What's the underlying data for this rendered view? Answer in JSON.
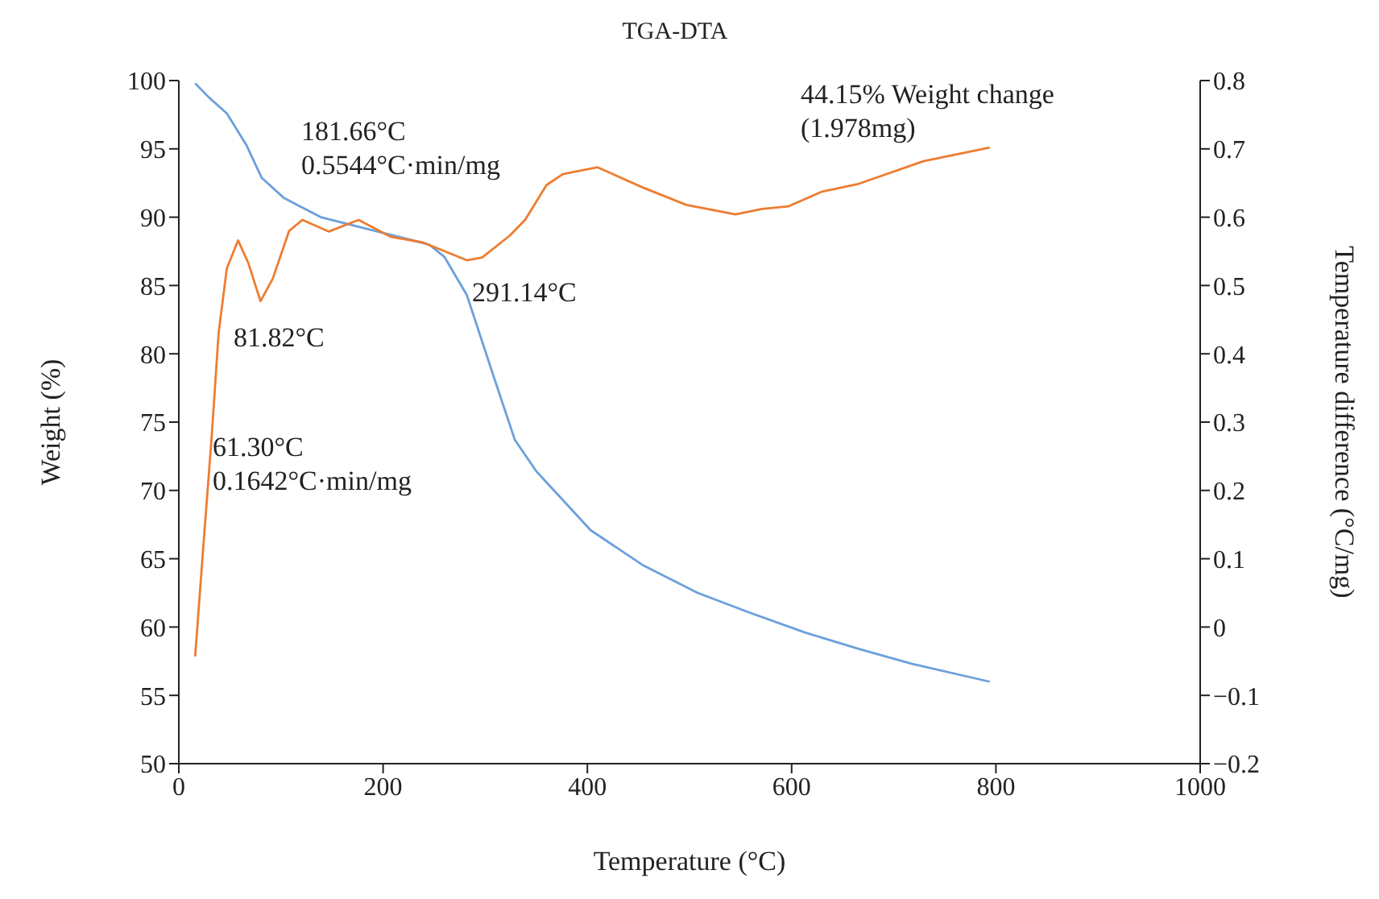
{
  "chart_data": {
    "type": "line",
    "title": "TGA-DTA",
    "xlabel": "Temperature (°C)",
    "ylabel": "Weight (%)",
    "y2label": "Temperature difference (°C/mg)",
    "xlim": [
      0,
      1000
    ],
    "xticks": [
      0,
      200,
      400,
      600,
      800,
      1000
    ],
    "ylim": [
      50,
      100
    ],
    "yticks": [
      50,
      55,
      60,
      65,
      70,
      75,
      80,
      85,
      90,
      95,
      100
    ],
    "y2lim": [
      -0.2,
      0.8
    ],
    "y2ticks": [
      {
        "value": -0.2,
        "label": "−0.2"
      },
      {
        "value": -0.1,
        "label": "−0.1"
      },
      0,
      0.1,
      0.2,
      0.3,
      0.4,
      0.5,
      0.6,
      0.7,
      0.8
    ],
    "grid": false,
    "legend": false,
    "series": [
      {
        "color": "#6ca0dc",
        "x": [
          16,
          29,
          47,
          66,
          81,
          103,
          139,
          192,
          245,
          260,
          282,
          308,
          329,
          350,
          392,
          403,
          455,
          508,
          561,
          613,
          666,
          718,
          794
        ],
        "values": [
          99.8,
          98.8,
          97.6,
          95.3,
          92.9,
          91.4,
          90,
          89,
          88,
          87.1,
          84.3,
          78.4,
          73.7,
          71.4,
          68,
          67.1,
          64.5,
          62.5,
          61,
          59.6,
          58.4,
          57.3,
          56
        ]
      },
      {
        "color": "#ed7d31",
        "axis": "y2",
        "x": [
          16,
          24,
          32,
          39,
          47,
          58,
          68,
          80,
          92,
          108,
          121,
          147,
          176,
          208,
          239,
          282,
          297,
          324,
          339,
          360,
          376,
          410,
          455,
          497,
          545,
          571,
          597,
          629,
          666,
          729,
          794
        ],
        "values": [
          -0.043,
          0.118,
          0.275,
          0.431,
          0.525,
          0.566,
          0.533,
          0.477,
          0.51,
          0.58,
          0.596,
          0.579,
          0.596,
          0.571,
          0.563,
          0.537,
          0.541,
          0.573,
          0.596,
          0.647,
          0.663,
          0.673,
          0.643,
          0.618,
          0.604,
          0.612,
          0.616,
          0.637,
          0.649,
          0.682,
          0.702
        ]
      }
    ],
    "annotations": [
      "181.66°C\n0.5544°C·min/mg",
      "81.82°C",
      "61.30°C\n0.1642°C·min/mg",
      "291.14°C",
      "44.15% Weight change\n(1.978mg)"
    ]
  }
}
